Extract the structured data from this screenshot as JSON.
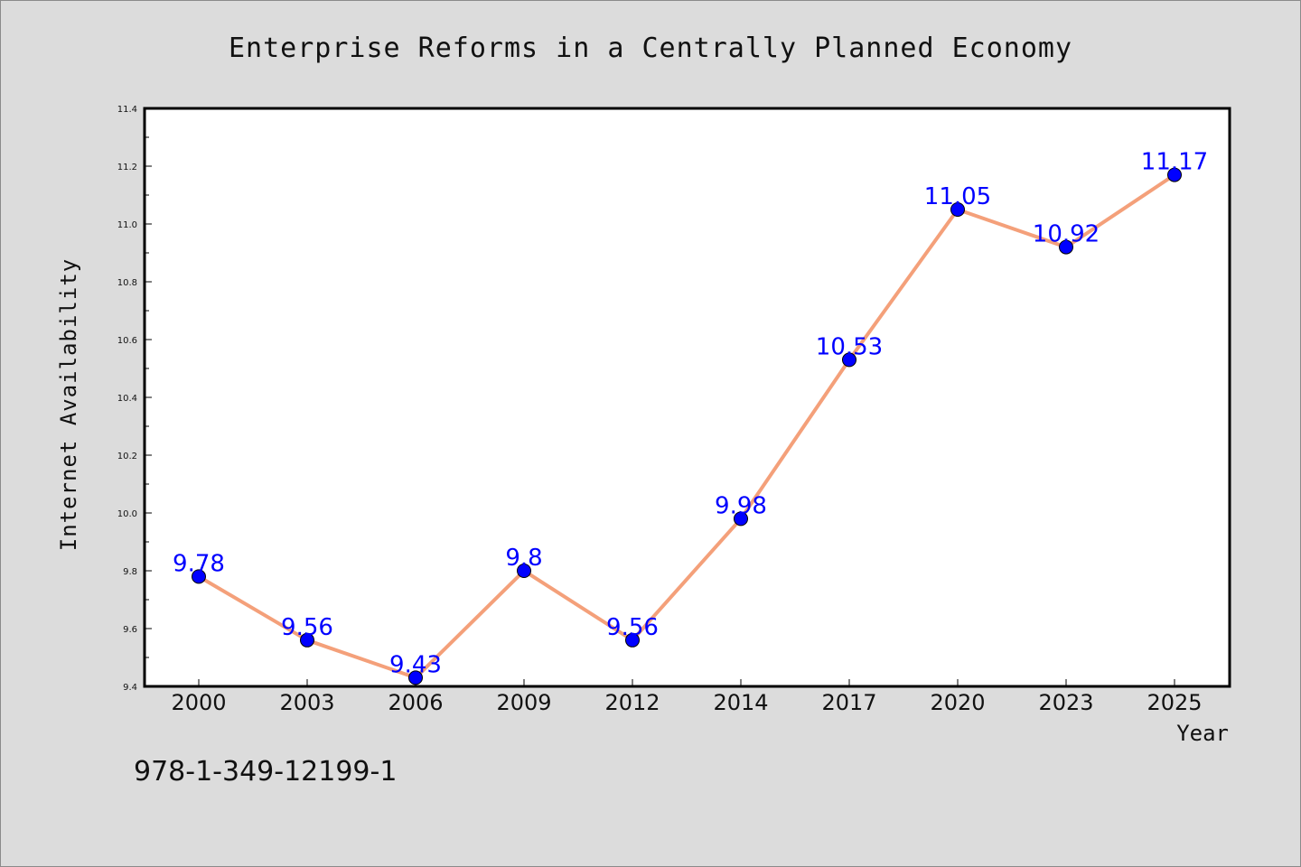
{
  "chart_data": {
    "type": "line",
    "title": "Enterprise Reforms in a Centrally Planned Economy",
    "xlabel": "Year",
    "ylabel": "Internet Availability",
    "categories": [
      "2000",
      "2003",
      "2006",
      "2009",
      "2012",
      "2014",
      "2017",
      "2020",
      "2023",
      "2025"
    ],
    "series": [
      {
        "values": [
          9.78,
          9.56,
          9.43,
          9.8,
          9.56,
          9.98,
          10.53,
          11.05,
          10.92,
          11.17
        ],
        "labels": [
          "9.78",
          "9.56",
          "9.43",
          "9.8",
          "9.56",
          "9.98",
          "10.53",
          "11.05",
          "10.92",
          "11.17"
        ],
        "line_color": "#f4a07a",
        "marker_color": "#0000ff"
      }
    ],
    "ylim": [
      9.4,
      11.4
    ],
    "yticks": [
      "9.4",
      "9.6",
      "9.8",
      "10.0",
      "10.2",
      "10.4",
      "10.6",
      "10.8",
      "11.0",
      "11.2",
      "11.4"
    ],
    "ytick_values": [
      9.4,
      9.6,
      9.8,
      10.0,
      10.2,
      10.4,
      10.6,
      10.8,
      11.0,
      11.2,
      11.4
    ],
    "grid": false,
    "legend": "none",
    "annotation": "978-1-349-12199-1"
  },
  "colors": {
    "background": "#dcdcdc",
    "plot_background": "#ffffff",
    "line": "#f4a07a",
    "marker": "#0000ff",
    "data_label": "#0000ff"
  }
}
